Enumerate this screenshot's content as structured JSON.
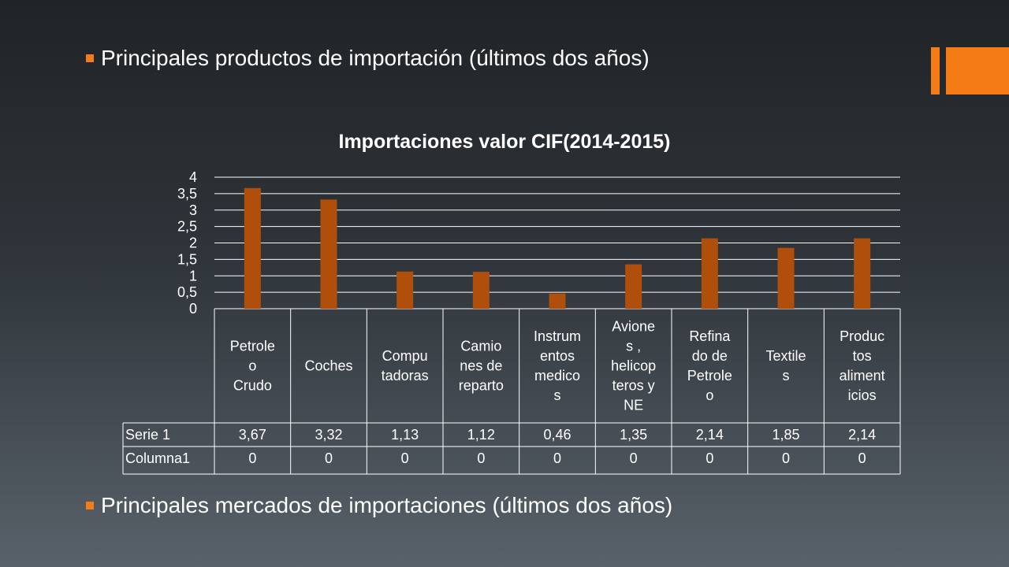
{
  "slide": {
    "bullets": [
      "Principales productos de importación (últimos dos años)",
      "Principales mercados de  importaciones (últimos dos años)"
    ],
    "accent_color": "#f47b16"
  },
  "chart_data": {
    "type": "bar",
    "title": "Importaciones valor CIF(2014-2015)",
    "categories": [
      [
        "Petrole",
        "o",
        "Crudo"
      ],
      [
        "Coches"
      ],
      [
        "Compu",
        "tadoras"
      ],
      [
        "Camio",
        "nes de",
        "reparto"
      ],
      [
        "Instrum",
        "entos",
        "medico",
        "s"
      ],
      [
        "Avione",
        "s ,",
        "helicop",
        "teros y",
        "NE"
      ],
      [
        "Refina",
        "do de",
        "Petrole",
        "o"
      ],
      [
        "Textile",
        "s"
      ],
      [
        "Produc",
        "tos",
        "aliment",
        "icios"
      ]
    ],
    "series": [
      {
        "name": "Serie 1",
        "values": [
          3.67,
          3.32,
          1.13,
          1.12,
          0.46,
          1.35,
          2.14,
          1.85,
          2.14
        ],
        "labels": [
          "3,67",
          "3,32",
          "1,13",
          "1,12",
          "0,46",
          "1,35",
          "2,14",
          "1,85",
          "2,14"
        ],
        "color": "#b04f0c"
      },
      {
        "name": "Columna1",
        "values": [
          0,
          0,
          0,
          0,
          0,
          0,
          0,
          0,
          0
        ],
        "labels": [
          "0",
          "0",
          "0",
          "0",
          "0",
          "0",
          "0",
          "0",
          "0"
        ]
      }
    ],
    "yticks": [
      "0",
      "0,5",
      "1",
      "1,5",
      "2",
      "2,5",
      "3",
      "3,5",
      "4"
    ],
    "ylim": [
      0,
      4
    ],
    "grid": true,
    "legend": "data-table"
  }
}
